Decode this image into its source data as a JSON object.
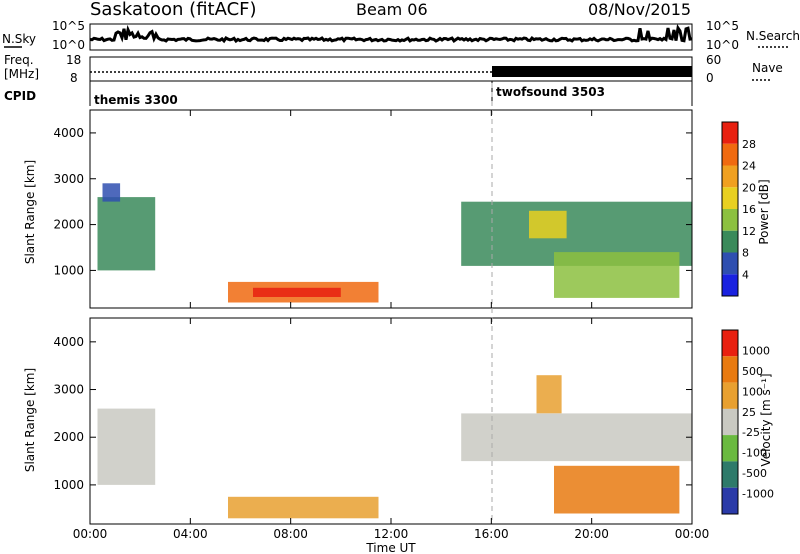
{
  "header": {
    "title": "Saskatoon (fitACF)",
    "beam": "Beam 06",
    "date": "08/Nov/2015"
  },
  "top_panels": {
    "nsky_label": "N.Sky",
    "nsky_ticks": [
      "10^5",
      "10^0"
    ],
    "nsearch_label": "N.Search",
    "nsearch_ticks": [
      "10^5",
      "10^0"
    ],
    "freq_label": "Freq.",
    "freq_unit": "[MHz]",
    "freq_ticks": [
      "18",
      "8"
    ],
    "nave_label": "Nave",
    "nave_ticks": [
      "60",
      "0"
    ],
    "cpid_label": "CPID",
    "cpid_segments": [
      {
        "name": "themis 3300",
        "start_hour": 0,
        "end_hour": 16
      },
      {
        "name": "twofsound 3503",
        "start_hour": 16,
        "end_hour": 24
      }
    ]
  },
  "colors": {
    "power": [
      "#1a22e0",
      "#2f4fb0",
      "#3a8a5a",
      "#8cc040",
      "#e8d020",
      "#f0a020",
      "#f06a10",
      "#e82010"
    ],
    "velocity": [
      "#2a3aa8",
      "#2e7a6a",
      "#6aba40",
      "#c9c9c2",
      "#e8a030",
      "#e87a10",
      "#e82010"
    ]
  },
  "chart_data": [
    {
      "type": "heatmap",
      "title": "",
      "ylabel": "Slant Range [km]",
      "yticks": [
        "4000",
        "3000",
        "2000",
        "1000"
      ],
      "ylim": [
        180,
        4500
      ],
      "xlim_hours": [
        0,
        24
      ],
      "colorbar_label": "Power [dB]",
      "colorbar_ticks": [
        "28",
        "24",
        "20",
        "16",
        "12",
        "8",
        "4"
      ],
      "regions": [
        {
          "t0": 0.3,
          "t1": 2.6,
          "r0": 1000,
          "r1": 2600,
          "level": 2
        },
        {
          "t0": 0.5,
          "t1": 1.2,
          "r0": 2500,
          "r1": 2900,
          "level": 1
        },
        {
          "t0": 5.5,
          "t1": 11.5,
          "r0": 300,
          "r1": 750,
          "level": 6
        },
        {
          "t0": 6.5,
          "t1": 10.0,
          "r0": 420,
          "r1": 620,
          "level": 7
        },
        {
          "t0": 14.8,
          "t1": 24.0,
          "r0": 1100,
          "r1": 2500,
          "level": 2
        },
        {
          "t0": 17.5,
          "t1": 19.0,
          "r0": 1700,
          "r1": 2300,
          "level": 4
        },
        {
          "t0": 18.5,
          "t1": 23.5,
          "r0": 400,
          "r1": 1400,
          "level": 3
        }
      ]
    },
    {
      "type": "heatmap",
      "title": "",
      "ylabel": "Slant Range [km]",
      "yticks": [
        "4000",
        "3000",
        "2000",
        "1000"
      ],
      "ylim": [
        180,
        4500
      ],
      "xlim_hours": [
        0,
        24
      ],
      "colorbar_label": "Velocity [m s⁻¹]",
      "colorbar_ticks": [
        "1000",
        "500",
        "100",
        "25",
        "-25",
        "-100",
        "-500",
        "-1000"
      ],
      "regions": [
        {
          "t0": 0.3,
          "t1": 2.6,
          "r0": 1000,
          "r1": 2600,
          "level": 3
        },
        {
          "t0": 5.5,
          "t1": 11.5,
          "r0": 300,
          "r1": 750,
          "level": 4
        },
        {
          "t0": 14.8,
          "t1": 24.0,
          "r0": 1500,
          "r1": 2500,
          "level": 3
        },
        {
          "t0": 18.5,
          "t1": 23.5,
          "r0": 400,
          "r1": 1400,
          "level": 5
        },
        {
          "t0": 17.8,
          "t1": 18.8,
          "r0": 2500,
          "r1": 3300,
          "level": 4
        }
      ]
    }
  ],
  "xaxis": {
    "label": "Time UT",
    "ticks": [
      "00:00",
      "04:00",
      "08:00",
      "12:00",
      "16:00",
      "20:00",
      "00:00"
    ]
  }
}
